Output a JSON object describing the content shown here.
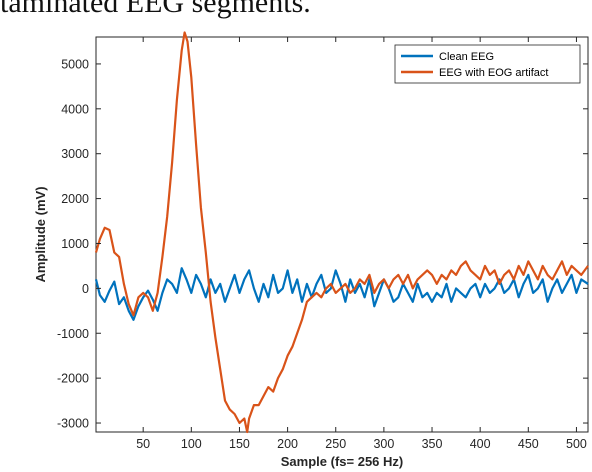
{
  "caption_fragment": "taminated EEG segments.",
  "chart_data": {
    "type": "line",
    "title": "",
    "xlabel": "Sample (fs= 256 Hz)",
    "ylabel": "Amplitude (mV)",
    "xlim": [
      1,
      512
    ],
    "ylim": [
      -3200,
      5600
    ],
    "xticks": [
      50,
      100,
      150,
      200,
      250,
      300,
      350,
      400,
      450,
      500
    ],
    "yticks": [
      -3000,
      -2000,
      -1000,
      0,
      1000,
      2000,
      3000,
      4000,
      5000
    ],
    "legend_position": "top-right",
    "grid": false,
    "series": [
      {
        "name": "Clean EEG",
        "color": "#0072BD",
        "x": [
          1,
          5,
          10,
          15,
          20,
          25,
          30,
          35,
          40,
          45,
          50,
          55,
          60,
          65,
          70,
          75,
          80,
          85,
          90,
          95,
          100,
          105,
          110,
          115,
          120,
          125,
          130,
          135,
          140,
          145,
          150,
          155,
          160,
          165,
          170,
          175,
          180,
          185,
          190,
          195,
          200,
          205,
          210,
          215,
          220,
          225,
          230,
          235,
          240,
          245,
          250,
          255,
          260,
          265,
          270,
          275,
          280,
          285,
          290,
          295,
          300,
          305,
          310,
          315,
          320,
          325,
          330,
          335,
          340,
          345,
          350,
          355,
          360,
          365,
          370,
          375,
          380,
          385,
          390,
          395,
          400,
          405,
          410,
          415,
          420,
          425,
          430,
          435,
          440,
          445,
          450,
          455,
          460,
          465,
          470,
          475,
          480,
          485,
          490,
          495,
          500,
          505,
          512
        ],
        "values": [
          200,
          -150,
          -300,
          -50,
          150,
          -350,
          -200,
          -500,
          -700,
          -400,
          -200,
          -50,
          -250,
          -500,
          -100,
          200,
          100,
          -100,
          450,
          200,
          -100,
          300,
          100,
          -200,
          200,
          -100,
          100,
          -300,
          0,
          300,
          -100,
          200,
          400,
          0,
          -300,
          100,
          -200,
          300,
          -100,
          0,
          400,
          -100,
          200,
          -300,
          100,
          -200,
          100,
          300,
          -100,
          0,
          400,
          100,
          -300,
          200,
          -100,
          100,
          -200,
          200,
          -400,
          -100,
          200,
          0,
          -300,
          -200,
          100,
          -100,
          -300,
          100,
          -200,
          -100,
          -300,
          -100,
          -200,
          100,
          -300,
          0,
          -100,
          -200,
          0,
          100,
          -200,
          100,
          -100,
          0,
          200,
          -100,
          0,
          200,
          -200,
          100,
          300,
          -100,
          0,
          200,
          -300,
          0,
          200,
          -100,
          100,
          300,
          -100,
          200,
          100
        ]
      },
      {
        "name": "EEG with EOG artifact",
        "color": "#D95319",
        "x": [
          1,
          5,
          10,
          15,
          20,
          25,
          30,
          35,
          40,
          45,
          50,
          55,
          60,
          65,
          70,
          75,
          80,
          85,
          90,
          93,
          96,
          100,
          105,
          110,
          115,
          120,
          125,
          130,
          135,
          140,
          145,
          150,
          155,
          158,
          160,
          165,
          170,
          175,
          180,
          185,
          190,
          195,
          200,
          205,
          210,
          215,
          220,
          225,
          230,
          235,
          240,
          245,
          250,
          255,
          260,
          265,
          270,
          275,
          280,
          285,
          290,
          295,
          300,
          305,
          310,
          315,
          320,
          325,
          330,
          335,
          340,
          345,
          350,
          355,
          360,
          365,
          370,
          375,
          380,
          385,
          390,
          395,
          400,
          405,
          410,
          415,
          420,
          425,
          430,
          435,
          440,
          445,
          450,
          455,
          460,
          465,
          470,
          475,
          480,
          485,
          490,
          495,
          500,
          505,
          512
        ],
        "values": [
          800,
          1100,
          1350,
          1300,
          800,
          700,
          100,
          -350,
          -600,
          -200,
          -100,
          -200,
          -500,
          -100,
          700,
          1600,
          2800,
          4200,
          5300,
          5700,
          5500,
          4700,
          3200,
          1800,
          800,
          -300,
          -1100,
          -1800,
          -2500,
          -2700,
          -2800,
          -3000,
          -2900,
          -3200,
          -2900,
          -2600,
          -2600,
          -2400,
          -2200,
          -2300,
          -2000,
          -1800,
          -1500,
          -1300,
          -1000,
          -700,
          -300,
          -200,
          -100,
          -200,
          0,
          100,
          -100,
          0,
          100,
          -100,
          0,
          200,
          100,
          300,
          -100,
          100,
          200,
          0,
          200,
          300,
          100,
          300,
          0,
          200,
          300,
          400,
          300,
          100,
          300,
          200,
          400,
          300,
          500,
          600,
          400,
          300,
          200,
          500,
          300,
          400,
          100,
          300,
          400,
          200,
          500,
          300,
          600,
          400,
          200,
          500,
          300,
          200,
          400,
          600,
          300,
          500,
          400,
          300,
          500
        ]
      }
    ]
  }
}
